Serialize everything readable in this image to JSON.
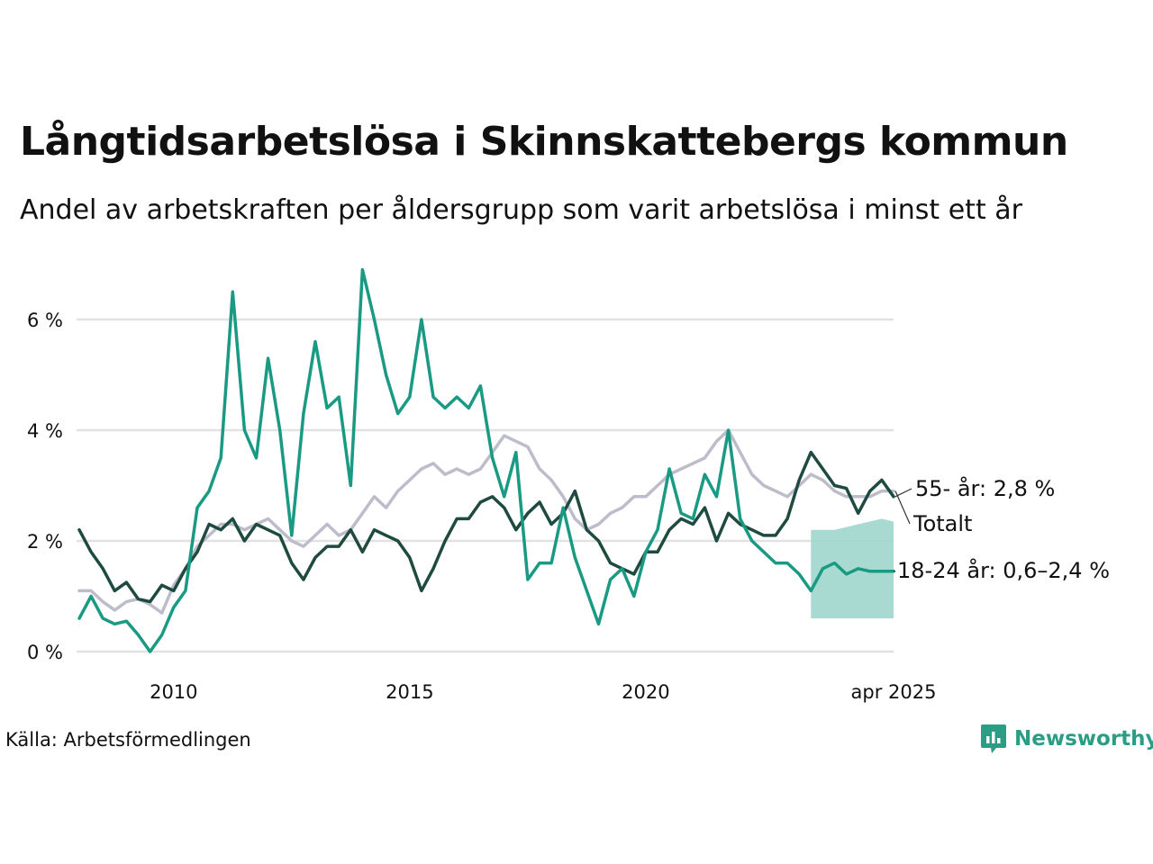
{
  "header": {
    "title": "Långtidsarbetslösa i Skinnskattebergs kommun",
    "subtitle": "Andel av arbetskraften per åldersgrupp som varit arbetslösa i minst ett år"
  },
  "footer": {
    "source": "Källa: Arbetsförmedlingen",
    "logo_text": "Newsworthy"
  },
  "chart_data": {
    "type": "line",
    "title": "Långtidsarbetslösa i Skinnskattebergs kommun",
    "subtitle": "Andel av arbetskraften per åldersgrupp som varit arbetslösa i minst ett år",
    "x_range": [
      2008.0,
      2025.25
    ],
    "ylim": [
      0,
      6.5
    ],
    "y_ticks": [
      {
        "value": 0,
        "label": "0 %"
      },
      {
        "value": 2,
        "label": "2 %"
      },
      {
        "value": 4,
        "label": "4 %"
      },
      {
        "value": 6,
        "label": "6 %"
      }
    ],
    "x_ticks": [
      {
        "value": 2010,
        "label": "2010"
      },
      {
        "value": 2015,
        "label": "2015"
      },
      {
        "value": 2020,
        "label": "2020"
      },
      {
        "value": 2025.25,
        "label": "apr 2025"
      }
    ],
    "grid": true,
    "legend": "end-labels",
    "colors": {
      "total": "#bdbccb",
      "age55": "#1f4a40",
      "age1824": "#1a9983",
      "band": "#9fd6cc",
      "grid": "#e2e2e2"
    },
    "series": [
      {
        "key": "total",
        "name": "Totalt",
        "end_label": "Totalt",
        "points": [
          [
            2008.0,
            1.1
          ],
          [
            2008.25,
            1.1
          ],
          [
            2008.5,
            0.9
          ],
          [
            2008.75,
            0.75
          ],
          [
            2009.0,
            0.9
          ],
          [
            2009.25,
            0.95
          ],
          [
            2009.5,
            0.85
          ],
          [
            2009.75,
            0.7
          ],
          [
            2010.0,
            1.2
          ],
          [
            2010.25,
            1.5
          ],
          [
            2010.5,
            1.9
          ],
          [
            2010.75,
            2.1
          ],
          [
            2011.0,
            2.3
          ],
          [
            2011.25,
            2.3
          ],
          [
            2011.5,
            2.2
          ],
          [
            2011.75,
            2.3
          ],
          [
            2012.0,
            2.4
          ],
          [
            2012.25,
            2.2
          ],
          [
            2012.5,
            2.0
          ],
          [
            2012.75,
            1.9
          ],
          [
            2013.0,
            2.1
          ],
          [
            2013.25,
            2.3
          ],
          [
            2013.5,
            2.1
          ],
          [
            2013.75,
            2.2
          ],
          [
            2014.0,
            2.5
          ],
          [
            2014.25,
            2.8
          ],
          [
            2014.5,
            2.6
          ],
          [
            2014.75,
            2.9
          ],
          [
            2015.0,
            3.1
          ],
          [
            2015.25,
            3.3
          ],
          [
            2015.5,
            3.4
          ],
          [
            2015.75,
            3.2
          ],
          [
            2016.0,
            3.3
          ],
          [
            2016.25,
            3.2
          ],
          [
            2016.5,
            3.3
          ],
          [
            2016.75,
            3.6
          ],
          [
            2017.0,
            3.9
          ],
          [
            2017.25,
            3.8
          ],
          [
            2017.5,
            3.7
          ],
          [
            2017.75,
            3.3
          ],
          [
            2018.0,
            3.1
          ],
          [
            2018.25,
            2.8
          ],
          [
            2018.5,
            2.4
          ],
          [
            2018.75,
            2.2
          ],
          [
            2019.0,
            2.3
          ],
          [
            2019.25,
            2.5
          ],
          [
            2019.5,
            2.6
          ],
          [
            2019.75,
            2.8
          ],
          [
            2020.0,
            2.8
          ],
          [
            2020.25,
            3.0
          ],
          [
            2020.5,
            3.2
          ],
          [
            2020.75,
            3.3
          ],
          [
            2021.0,
            3.4
          ],
          [
            2021.25,
            3.5
          ],
          [
            2021.5,
            3.8
          ],
          [
            2021.75,
            4.0
          ],
          [
            2022.0,
            3.6
          ],
          [
            2022.25,
            3.2
          ],
          [
            2022.5,
            3.0
          ],
          [
            2022.75,
            2.9
          ],
          [
            2023.0,
            2.8
          ],
          [
            2023.25,
            3.0
          ],
          [
            2023.5,
            3.2
          ],
          [
            2023.75,
            3.1
          ],
          [
            2024.0,
            2.9
          ],
          [
            2024.25,
            2.8
          ],
          [
            2024.5,
            2.8
          ],
          [
            2024.75,
            2.8
          ],
          [
            2025.0,
            2.9
          ],
          [
            2025.25,
            2.9
          ]
        ]
      },
      {
        "key": "age55",
        "name": "55- år",
        "end_label": "55- år: 2,8 %",
        "points": [
          [
            2008.0,
            2.2
          ],
          [
            2008.25,
            1.8
          ],
          [
            2008.5,
            1.5
          ],
          [
            2008.75,
            1.1
          ],
          [
            2009.0,
            1.25
          ],
          [
            2009.25,
            0.95
          ],
          [
            2009.5,
            0.9
          ],
          [
            2009.75,
            1.2
          ],
          [
            2010.0,
            1.1
          ],
          [
            2010.25,
            1.5
          ],
          [
            2010.5,
            1.8
          ],
          [
            2010.75,
            2.3
          ],
          [
            2011.0,
            2.2
          ],
          [
            2011.25,
            2.4
          ],
          [
            2011.5,
            2.0
          ],
          [
            2011.75,
            2.3
          ],
          [
            2012.0,
            2.2
          ],
          [
            2012.25,
            2.1
          ],
          [
            2012.5,
            1.6
          ],
          [
            2012.75,
            1.3
          ],
          [
            2013.0,
            1.7
          ],
          [
            2013.25,
            1.9
          ],
          [
            2013.5,
            1.9
          ],
          [
            2013.75,
            2.2
          ],
          [
            2014.0,
            1.8
          ],
          [
            2014.25,
            2.2
          ],
          [
            2014.5,
            2.1
          ],
          [
            2014.75,
            2.0
          ],
          [
            2015.0,
            1.7
          ],
          [
            2015.25,
            1.1
          ],
          [
            2015.5,
            1.5
          ],
          [
            2015.75,
            2.0
          ],
          [
            2016.0,
            2.4
          ],
          [
            2016.25,
            2.4
          ],
          [
            2016.5,
            2.7
          ],
          [
            2016.75,
            2.8
          ],
          [
            2017.0,
            2.6
          ],
          [
            2017.25,
            2.2
          ],
          [
            2017.5,
            2.5
          ],
          [
            2017.75,
            2.7
          ],
          [
            2018.0,
            2.3
          ],
          [
            2018.25,
            2.5
          ],
          [
            2018.5,
            2.9
          ],
          [
            2018.75,
            2.2
          ],
          [
            2019.0,
            2.0
          ],
          [
            2019.25,
            1.6
          ],
          [
            2019.5,
            1.5
          ],
          [
            2019.75,
            1.4
          ],
          [
            2020.0,
            1.8
          ],
          [
            2020.25,
            1.8
          ],
          [
            2020.5,
            2.2
          ],
          [
            2020.75,
            2.4
          ],
          [
            2021.0,
            2.3
          ],
          [
            2021.25,
            2.6
          ],
          [
            2021.5,
            2.0
          ],
          [
            2021.75,
            2.5
          ],
          [
            2022.0,
            2.3
          ],
          [
            2022.25,
            2.2
          ],
          [
            2022.5,
            2.1
          ],
          [
            2022.75,
            2.1
          ],
          [
            2023.0,
            2.4
          ],
          [
            2023.25,
            3.1
          ],
          [
            2023.5,
            3.6
          ],
          [
            2023.75,
            3.3
          ],
          [
            2024.0,
            3.0
          ],
          [
            2024.25,
            2.95
          ],
          [
            2024.5,
            2.5
          ],
          [
            2024.75,
            2.9
          ],
          [
            2025.0,
            3.1
          ],
          [
            2025.25,
            2.8
          ]
        ]
      },
      {
        "key": "age1824",
        "name": "18-24 år",
        "end_label": "18-24 år: 0,6–2,4 %",
        "points": [
          [
            2008.0,
            0.6
          ],
          [
            2008.25,
            1.0
          ],
          [
            2008.5,
            0.6
          ],
          [
            2008.75,
            0.5
          ],
          [
            2009.0,
            0.55
          ],
          [
            2009.25,
            0.3
          ],
          [
            2009.5,
            0.0
          ],
          [
            2009.75,
            0.3
          ],
          [
            2010.0,
            0.8
          ],
          [
            2010.25,
            1.1
          ],
          [
            2010.5,
            2.6
          ],
          [
            2010.75,
            2.9
          ],
          [
            2011.0,
            3.5
          ],
          [
            2011.25,
            6.5
          ],
          [
            2011.5,
            4.0
          ],
          [
            2011.75,
            3.5
          ],
          [
            2012.0,
            5.3
          ],
          [
            2012.25,
            4.0
          ],
          [
            2012.5,
            2.1
          ],
          [
            2012.75,
            4.3
          ],
          [
            2013.0,
            5.6
          ],
          [
            2013.25,
            4.4
          ],
          [
            2013.5,
            4.6
          ],
          [
            2013.75,
            3.0
          ],
          [
            2014.0,
            6.9
          ],
          [
            2014.25,
            6.0
          ],
          [
            2014.5,
            5.0
          ],
          [
            2014.75,
            4.3
          ],
          [
            2015.0,
            4.6
          ],
          [
            2015.25,
            6.0
          ],
          [
            2015.5,
            4.6
          ],
          [
            2015.75,
            4.4
          ],
          [
            2016.0,
            4.6
          ],
          [
            2016.25,
            4.4
          ],
          [
            2016.5,
            4.8
          ],
          [
            2016.75,
            3.5
          ],
          [
            2017.0,
            2.8
          ],
          [
            2017.25,
            3.6
          ],
          [
            2017.5,
            1.3
          ],
          [
            2017.75,
            1.6
          ],
          [
            2018.0,
            1.6
          ],
          [
            2018.25,
            2.6
          ],
          [
            2018.5,
            1.7
          ],
          [
            2018.75,
            1.1
          ],
          [
            2019.0,
            0.5
          ],
          [
            2019.25,
            1.3
          ],
          [
            2019.5,
            1.5
          ],
          [
            2019.75,
            1.0
          ],
          [
            2020.0,
            1.8
          ],
          [
            2020.25,
            2.2
          ],
          [
            2020.5,
            3.3
          ],
          [
            2020.75,
            2.5
          ],
          [
            2021.0,
            2.4
          ],
          [
            2021.25,
            3.2
          ],
          [
            2021.5,
            2.8
          ],
          [
            2021.75,
            4.0
          ],
          [
            2022.0,
            2.4
          ],
          [
            2022.25,
            2.0
          ],
          [
            2022.5,
            1.8
          ],
          [
            2022.75,
            1.6
          ],
          [
            2023.0,
            1.6
          ],
          [
            2023.25,
            1.4
          ],
          [
            2023.5,
            1.1
          ],
          [
            2023.75,
            1.5
          ],
          [
            2024.0,
            1.6
          ],
          [
            2024.25,
            1.4
          ],
          [
            2024.5,
            1.5
          ],
          [
            2024.75,
            1.45
          ],
          [
            2025.0,
            1.45
          ],
          [
            2025.25,
            1.45
          ]
        ]
      }
    ],
    "band": {
      "series": "age1824",
      "upper": [
        [
          2023.5,
          2.2
        ],
        [
          2024.0,
          2.2
        ],
        [
          2024.5,
          2.3
        ],
        [
          2025.0,
          2.4
        ],
        [
          2025.25,
          2.35
        ]
      ],
      "lower": [
        [
          2023.5,
          0.6
        ],
        [
          2024.0,
          0.6
        ],
        [
          2024.5,
          0.6
        ],
        [
          2025.0,
          0.6
        ],
        [
          2025.25,
          0.6
        ]
      ]
    }
  }
}
